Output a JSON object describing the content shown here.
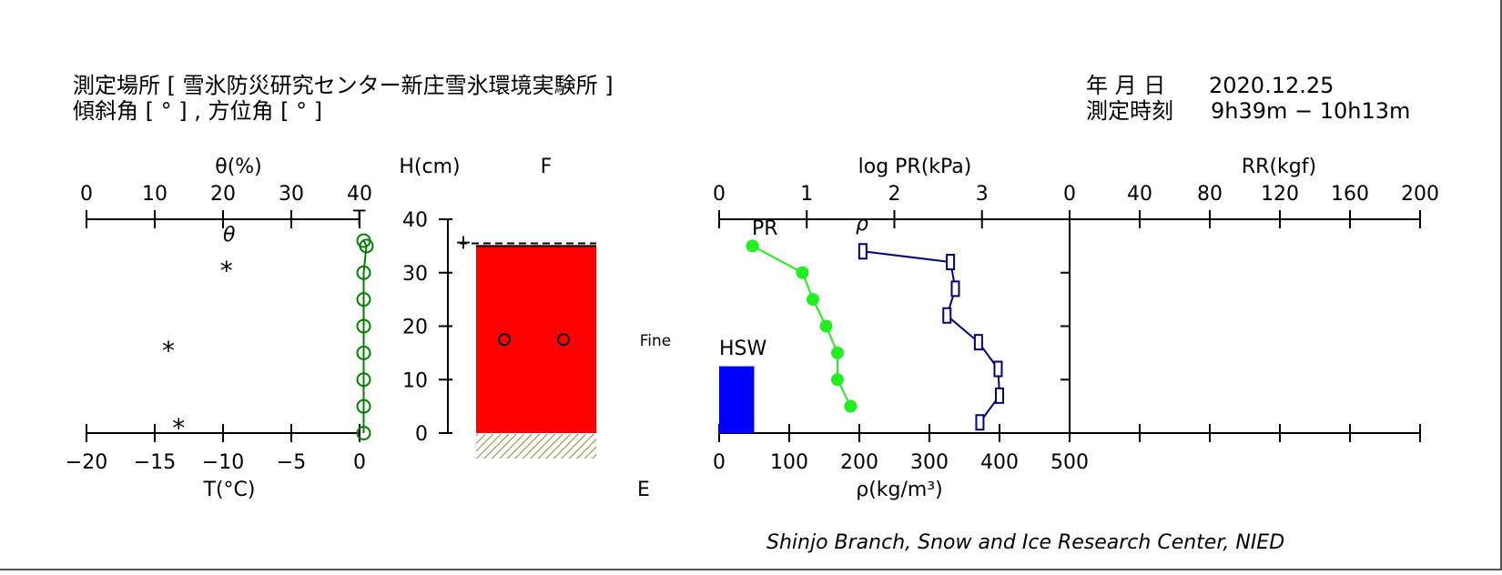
{
  "header": {
    "location": "測定場所 [ 雪氷防災研究センター新庄雪氷環境実験所 ]",
    "slope": "傾斜角 [ ° ] , 方位角 [ ° ]",
    "date_label": "年 月 日",
    "date_value": "2020.12.25",
    "time_label": "測定時刻",
    "time_value": "9h39m − 10h13m"
  },
  "footer": {
    "credit": "Shinjo Branch, Snow and Ice Research Center, NIED"
  },
  "chart_data": [
    {
      "type": "scatter",
      "xlabel": "T(°C)",
      "x2label": "θ(%)",
      "ylabel": "H(cm)",
      "xlim": [
        -20,
        0
      ],
      "xticks": [
        "−20",
        "−15",
        "−10",
        "−5",
        "0"
      ],
      "x2lim": [
        0,
        40
      ],
      "x2ticks": [
        "0",
        "10",
        "20",
        "30",
        "40"
      ],
      "ylim": [
        0,
        40
      ],
      "yticks": [
        "0",
        "10",
        "20",
        "30",
        "40"
      ],
      "series": [
        {
          "name": "θ",
          "marker": "*",
          "axis": "x2",
          "points": [
            [
              20.5,
              31
            ],
            [
              12,
              16
            ],
            [
              13.5,
              1.5
            ]
          ]
        },
        {
          "name": "T",
          "marker": "open-circle",
          "color": "#008000",
          "axis": "x",
          "points": [
            [
              0.3,
              36
            ],
            [
              0.5,
              35
            ],
            [
              0.3,
              30
            ],
            [
              0.3,
              25
            ],
            [
              0.3,
              20
            ],
            [
              0.3,
              15
            ],
            [
              0.3,
              10
            ],
            [
              0.3,
              5
            ],
            [
              0.3,
              0
            ]
          ]
        }
      ]
    },
    {
      "type": "profile",
      "top_label": "F",
      "bottom_label": "E",
      "snow_surface_cm": 35,
      "new_snow_cm": 35.5,
      "layers": [
        {
          "from": 0,
          "to": 35,
          "color": "#ff0000",
          "grain": "Fine",
          "marks": [
            17.5
          ]
        }
      ]
    },
    {
      "type": "line",
      "xlabel": "ρ(kg/m³)",
      "x2label": "log PR(kPa)",
      "xlim": [
        0,
        500
      ],
      "xticks": [
        "0",
        "100",
        "200",
        "300",
        "400",
        "500"
      ],
      "x2lim": [
        0,
        4
      ],
      "x2ticks": [
        "0",
        "1",
        "2",
        "3"
      ],
      "series": [
        {
          "name": "PR",
          "color": "#22ee22",
          "axis": "x2",
          "marker": "filled-circle",
          "points": [
            [
              0.38,
              35
            ],
            [
              0.95,
              30
            ],
            [
              1.07,
              25
            ],
            [
              1.22,
              20
            ],
            [
              1.35,
              15
            ],
            [
              1.35,
              10
            ],
            [
              1.5,
              5
            ]
          ]
        },
        {
          "name": "ρ",
          "color": "#000080",
          "axis": "x",
          "marker": "open-square",
          "points": [
            [
              205,
              34
            ],
            [
              330,
              32
            ],
            [
              337,
              27
            ],
            [
              325,
              22
            ],
            [
              370,
              17
            ],
            [
              398,
              12
            ],
            [
              400,
              7
            ],
            [
              372,
              2
            ]
          ]
        }
      ],
      "hsw": {
        "label": "HSW",
        "value": 50,
        "height_cm": 12.5,
        "color": "#0000ff"
      }
    },
    {
      "type": "line",
      "x2label": "RR(kgf)",
      "x2lim": [
        0,
        200
      ],
      "x2ticks": [
        "0",
        "40",
        "80",
        "120",
        "160",
        "200"
      ],
      "series": []
    }
  ]
}
